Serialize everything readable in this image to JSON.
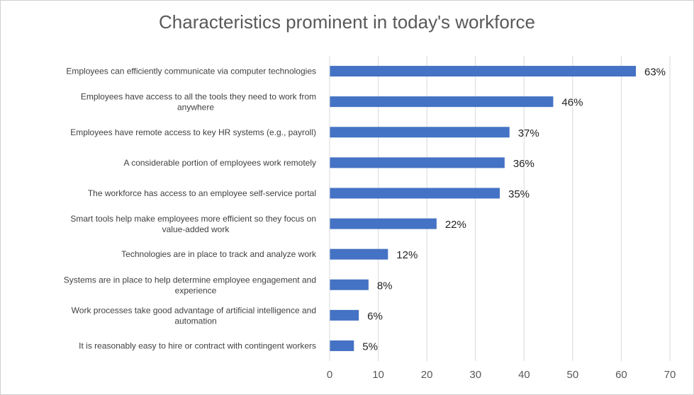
{
  "chart_data": {
    "type": "bar",
    "orientation": "horizontal",
    "title": "Characteristics prominent in today's workforce",
    "xlabel": "",
    "ylabel": "",
    "xlim": [
      0,
      70
    ],
    "xticks": [
      0,
      10,
      20,
      30,
      40,
      50,
      60,
      70
    ],
    "grid": true,
    "legend": "none",
    "bar_color": "#4472C4",
    "categories": [
      "Employees can efficiently communicate via computer technologies",
      "Employees have access to all the tools they need to work from anywhere",
      "Employees have remote access to key HR systems (e.g., payroll)",
      "A considerable portion of employees work remotely",
      "The workforce has access to an employee self-service portal",
      "Smart tools help make employees more efficient so they focus on value-added work",
      "Technologies are in place to track and analyze work",
      "Systems are in place to help determine employee engagement and experience",
      "Work processes take good advantage of artificial intelligence and automation",
      "It is reasonably easy to hire or contract with contingent workers"
    ],
    "values": [
      63,
      46,
      37,
      36,
      35,
      22,
      12,
      8,
      6,
      5
    ],
    "data_labels": [
      "63%",
      "46%",
      "37%",
      "36%",
      "35%",
      "22%",
      "12%",
      "8%",
      "6%",
      "5%"
    ]
  }
}
